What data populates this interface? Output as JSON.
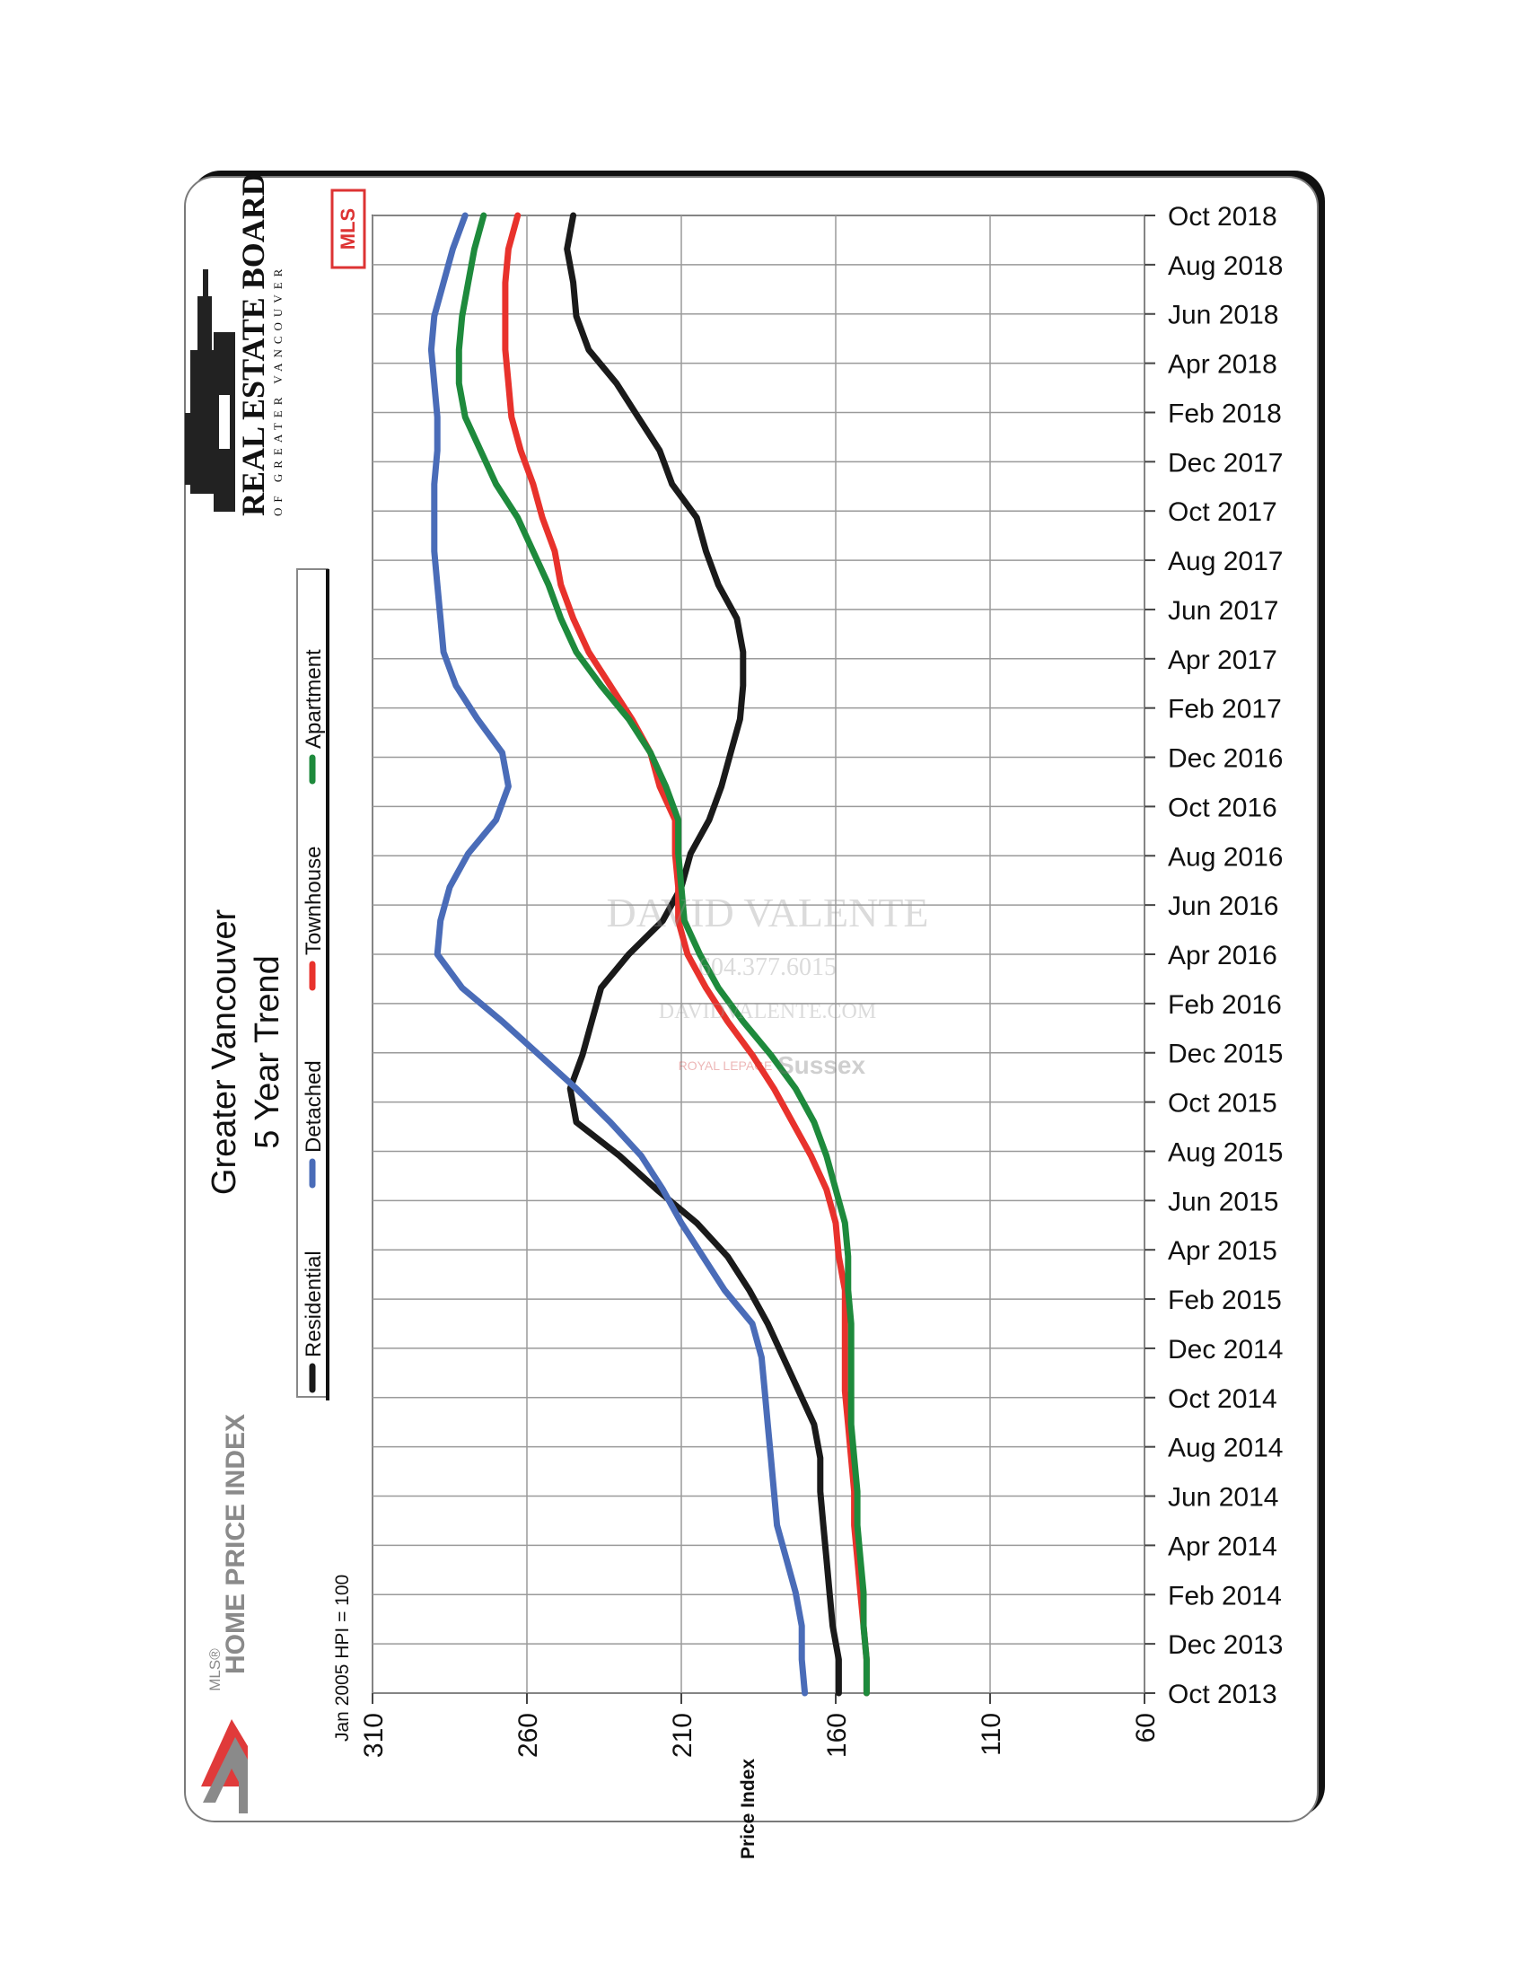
{
  "chart_data": {
    "type": "line",
    "title": "Greater Vancouver",
    "subtitle": "5 Year Trend",
    "xlabel": "",
    "ylabel": "Price Index",
    "y_note": "Jan 2005 HPI = 100",
    "ylim": [
      60,
      310
    ],
    "y_ticks": [
      310,
      260,
      210,
      160,
      110,
      60
    ],
    "x_ticks": [
      "Oct 2013",
      "Dec 2013",
      "Feb 2014",
      "Apr 2014",
      "Jun 2014",
      "Aug 2014",
      "Oct 2014",
      "Dec 2014",
      "Feb 2015",
      "Apr 2015",
      "Jun 2015",
      "Aug 2015",
      "Oct 2015",
      "Dec 2015",
      "Feb 2016",
      "Apr 2016",
      "Jun 2016",
      "Aug 2016",
      "Oct 2016",
      "Dec 2016",
      "Feb 2017",
      "Apr 2017",
      "Jun 2017",
      "Aug 2017",
      "Oct 2017",
      "Dec 2017",
      "Feb 2018",
      "Apr 2018",
      "Jun 2018",
      "Aug 2018",
      "Oct 2018"
    ],
    "series": [
      {
        "name": "Residential",
        "color": "#1a1a1a",
        "values": [
          159,
          159,
          161,
          162,
          163,
          164,
          165,
          165,
          167,
          172,
          177,
          182,
          188,
          195,
          205,
          218,
          230,
          244,
          246,
          242,
          239,
          236,
          227,
          216,
          210,
          207,
          201,
          197,
          194,
          191,
          190,
          190,
          192,
          198,
          202,
          205,
          213,
          217,
          224,
          231,
          240,
          244,
          245,
          247,
          245
        ]
      },
      {
        "name": "Detached",
        "color": "#4a6cb8",
        "values": [
          170,
          171,
          171,
          173,
          176,
          179,
          180,
          181,
          182,
          183,
          184,
          187,
          196,
          203,
          210,
          216,
          223,
          233,
          244,
          256,
          268,
          281,
          289,
          288,
          285,
          279,
          270,
          266,
          268,
          276,
          283,
          287,
          288,
          289,
          290,
          290,
          290,
          289,
          289,
          290,
          291,
          290,
          287,
          284,
          280
        ]
      },
      {
        "name": "Townhouse",
        "color": "#e8322c",
        "values": [
          150,
          150,
          151,
          152,
          153,
          154,
          154,
          155,
          156,
          157,
          157,
          157,
          157,
          159,
          160,
          163,
          168,
          174,
          180,
          187,
          195,
          202,
          208,
          211,
          211,
          212,
          212,
          217,
          220,
          226,
          233,
          240,
          245,
          249,
          251,
          255,
          258,
          262,
          265,
          266,
          267,
          267,
          267,
          266,
          263
        ]
      },
      {
        "name": "Apartment",
        "color": "#1e8a3c",
        "values": [
          150,
          150,
          151,
          151,
          152,
          153,
          153,
          154,
          155,
          155,
          155,
          155,
          156,
          156,
          157,
          160,
          163,
          167,
          173,
          181,
          190,
          198,
          204,
          209,
          210,
          211,
          211,
          215,
          220,
          227,
          236,
          244,
          249,
          253,
          258,
          263,
          270,
          275,
          280,
          282,
          282,
          281,
          279,
          277,
          274
        ]
      }
    ],
    "legend": [
      "Residential",
      "Detached",
      "Townhouse",
      "Apartment"
    ],
    "legend_position": "left, rotated"
  },
  "branding": {
    "board_name": "REAL ESTATE BOARD",
    "board_sub": "OF GREATER VANCOUVER",
    "mls_logo": "MLS",
    "hpi_small": "MLS®",
    "hpi_title": "HOME PRICE INDEX",
    "watermark_name": "DAVID VALENTE",
    "watermark_phone": "604.377.6015",
    "watermark_site": "DAVIDVALENTE.COM",
    "watermark_brokerage_a": "ROYAL LEPAGE",
    "watermark_brokerage_b": "Sussex"
  },
  "colors": {
    "residential": "#1a1a1a",
    "detached": "#4a6cb8",
    "townhouse": "#e8322c",
    "apartment": "#1e8a3c",
    "hpi_red": "#e03a3a",
    "hpi_gray": "#8a8a8a"
  }
}
